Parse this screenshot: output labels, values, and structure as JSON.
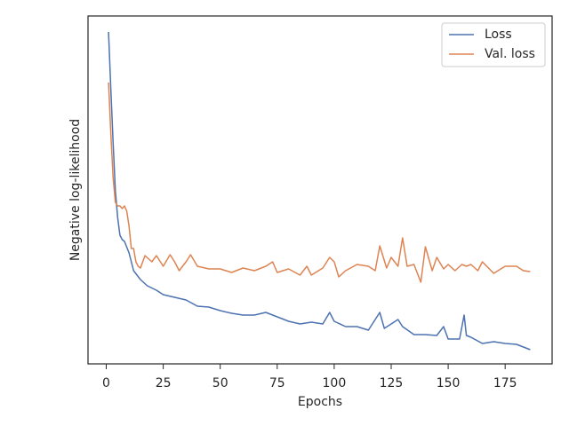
{
  "chart_data": {
    "type": "line",
    "xlabel": "Epochs",
    "ylabel": "Negative log-likelihood",
    "xlim": [
      -8.0,
      195.6
    ],
    "xticks": [
      0,
      25,
      50,
      75,
      100,
      125,
      150,
      175
    ],
    "ylim": [
      0,
      392
    ],
    "legend": "upper right",
    "grid": false,
    "series": [
      {
        "name": "Loss",
        "color": "#4c72b0",
        "x": [
          1,
          2,
          3,
          4,
          5,
          6,
          7,
          8,
          10,
          12,
          15,
          18,
          22,
          25,
          30,
          35,
          40,
          45,
          50,
          55,
          60,
          65,
          70,
          75,
          80,
          85,
          90,
          95,
          98,
          100,
          105,
          110,
          115,
          120,
          122,
          125,
          128,
          130,
          135,
          140,
          145,
          148,
          150,
          155,
          157,
          158,
          160,
          165,
          170,
          175,
          180,
          183,
          186
        ],
        "values": [
          374,
          310,
          250,
          195,
          165,
          145,
          140,
          138,
          125,
          105,
          95,
          88,
          83,
          78,
          75,
          72,
          65,
          64,
          60,
          57,
          55,
          55,
          58,
          53,
          48,
          45,
          47,
          45,
          58,
          48,
          42,
          42,
          38,
          58,
          40,
          45,
          50,
          42,
          33,
          33,
          32,
          42,
          28,
          28,
          55,
          32,
          30,
          23,
          25,
          23,
          22,
          19,
          16
        ]
      },
      {
        "name": "Val. loss",
        "color": "#dd8452",
        "x": [
          1,
          2,
          3,
          4,
          5,
          6,
          7,
          8,
          9,
          10,
          11,
          12,
          13,
          14,
          15,
          17,
          20,
          22,
          25,
          28,
          30,
          32,
          35,
          37,
          40,
          45,
          50,
          55,
          60,
          65,
          70,
          73,
          75,
          80,
          85,
          88,
          90,
          95,
          98,
          100,
          102,
          105,
          110,
          115,
          118,
          120,
          123,
          125,
          128,
          130,
          132,
          135,
          138,
          140,
          143,
          145,
          148,
          150,
          153,
          156,
          158,
          160,
          163,
          165,
          170,
          175,
          180,
          183,
          186
        ],
        "values": [
          317,
          260,
          210,
          182,
          178,
          178,
          175,
          178,
          172,
          155,
          130,
          130,
          115,
          110,
          108,
          122,
          115,
          122,
          110,
          123,
          115,
          105,
          115,
          123,
          110,
          107,
          107,
          103,
          108,
          105,
          110,
          115,
          103,
          107,
          100,
          110,
          100,
          108,
          120,
          115,
          98,
          105,
          112,
          110,
          105,
          133,
          108,
          120,
          110,
          142,
          110,
          112,
          92,
          132,
          105,
          120,
          107,
          112,
          105,
          112,
          110,
          112,
          105,
          115,
          102,
          110,
          110,
          105,
          104
        ]
      }
    ]
  }
}
